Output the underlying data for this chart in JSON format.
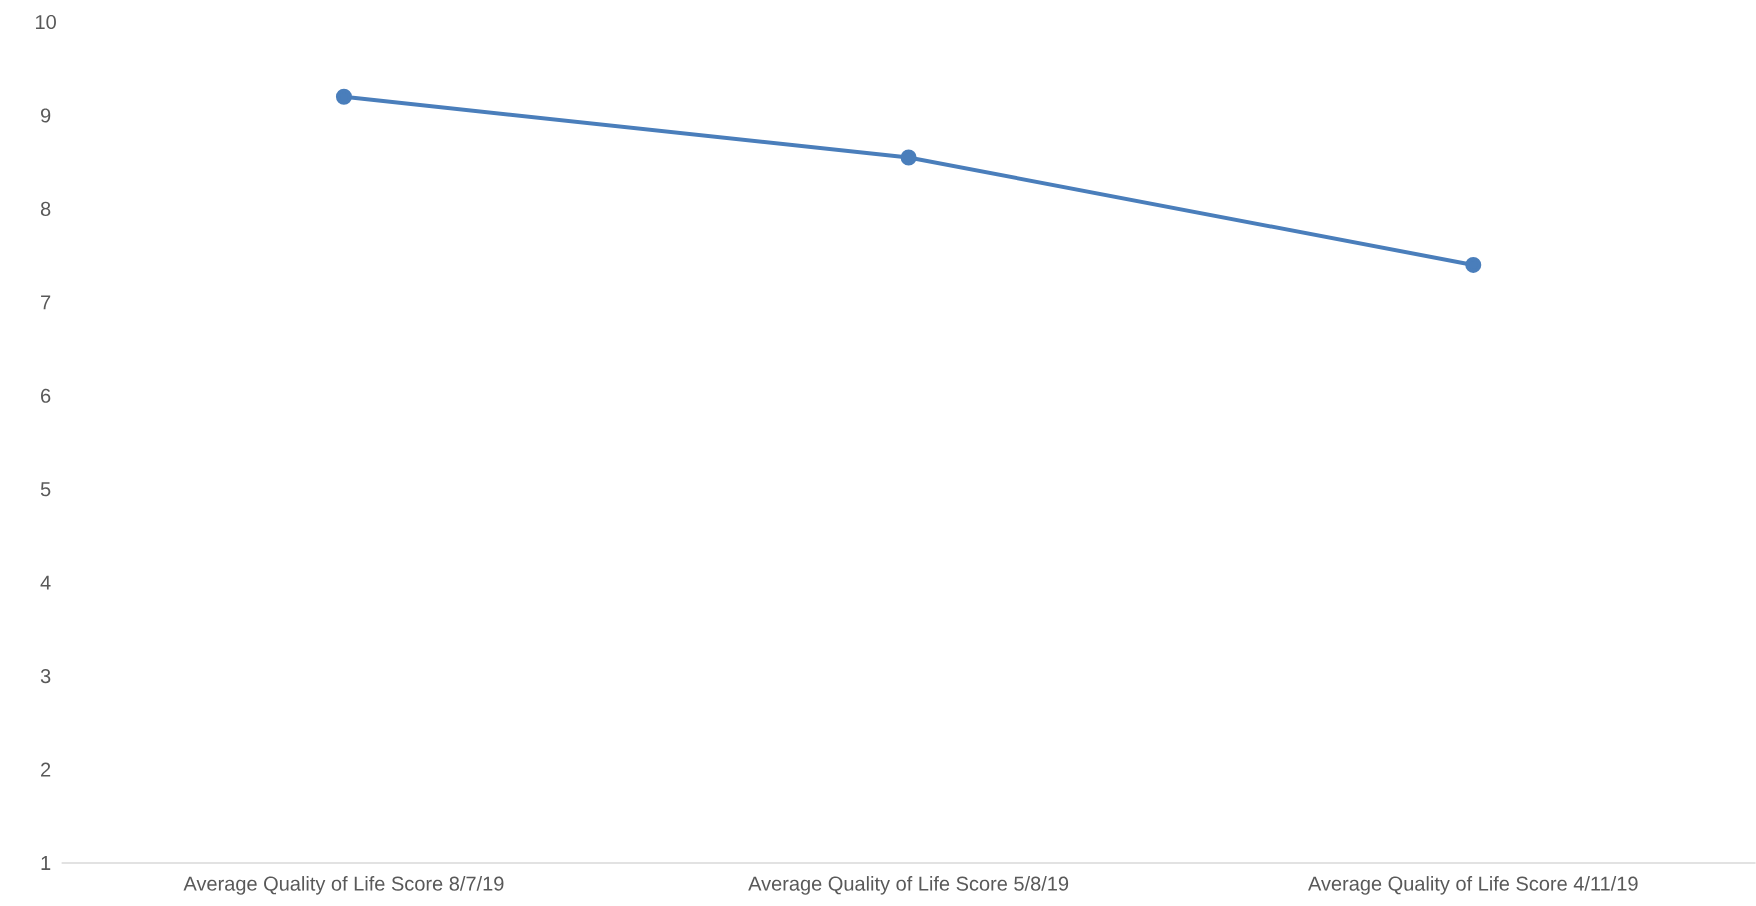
{
  "chart_data": {
    "type": "line",
    "categories": [
      "Average Quality of Life Score 8/7/19",
      "Average Quality of Life Score 5/8/19",
      "Average Quality of Life Score 4/11/19"
    ],
    "values": [
      9.2,
      8.55,
      7.4
    ],
    "color": "#4a7ebb",
    "marker": "circle",
    "line_style": "solid",
    "ylim": [
      1,
      10
    ],
    "yticks": [
      1,
      2,
      3,
      4,
      5,
      6,
      7,
      8,
      9,
      10
    ],
    "grid": false
  }
}
